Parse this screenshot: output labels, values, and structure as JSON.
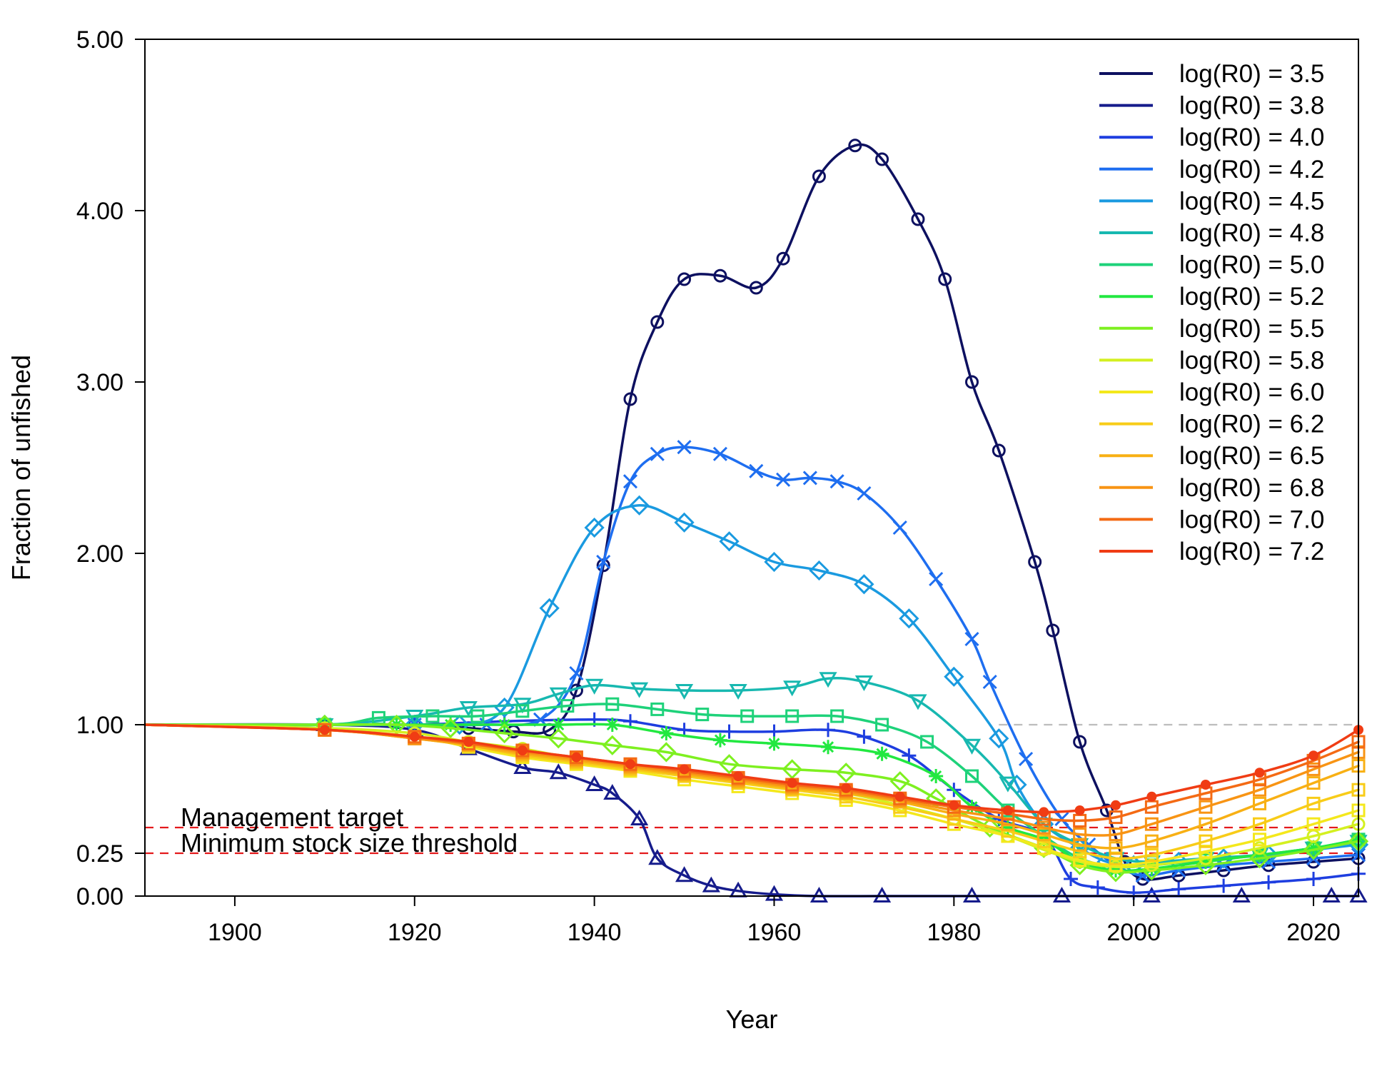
{
  "chart_data": {
    "type": "line",
    "xlabel": "Year",
    "ylabel": "Fraction of unfished",
    "xlim": [
      1890,
      2025
    ],
    "ylim": [
      0,
      5
    ],
    "xticks": [
      "1900",
      "1920",
      "1940",
      "1960",
      "1980",
      "2000",
      "2020"
    ],
    "xtick_values": [
      1900,
      1920,
      1940,
      1960,
      1980,
      2000,
      2020
    ],
    "yticks": [
      "0.00",
      "0.25",
      "1.00",
      "2.00",
      "3.00",
      "4.00",
      "5.00"
    ],
    "ytick_values": [
      0,
      0.25,
      1,
      2,
      3,
      4,
      5
    ],
    "grid": false,
    "legend_position": "top-right",
    "reference_lines": [
      {
        "label": "",
        "y": 1.0,
        "color": "#bdbdbd",
        "style": "dashed"
      },
      {
        "label": "Management target",
        "y": 0.4,
        "color": "#e41a1c",
        "style": "dashed"
      },
      {
        "label": "Minimum stock size threshold",
        "y": 0.25,
        "color": "#e41a1c",
        "style": "dashed"
      }
    ],
    "series": [
      {
        "name": "log(R0) = 3.5",
        "color": "#0d1060",
        "marker": "circle",
        "x": [
          1890,
          1910,
          1920,
          1926,
          1931,
          1935,
          1938,
          1941,
          1944,
          1947,
          1950,
          1954,
          1958,
          1961,
          1965,
          1969,
          1972,
          1976,
          1979,
          1982,
          1985,
          1989,
          1991,
          1994,
          1997,
          1999,
          2001,
          2005,
          2010,
          2015,
          2020,
          2025
        ],
        "y": [
          1.0,
          1.0,
          1.0,
          0.98,
          0.96,
          0.97,
          1.2,
          1.93,
          2.9,
          3.35,
          3.6,
          3.62,
          3.55,
          3.72,
          4.2,
          4.38,
          4.3,
          3.95,
          3.6,
          3.0,
          2.6,
          1.95,
          1.55,
          0.9,
          0.5,
          0.2,
          0.1,
          0.12,
          0.15,
          0.18,
          0.2,
          0.22
        ]
      },
      {
        "name": "log(R0) = 3.8",
        "color": "#161c8c",
        "marker": "triangle",
        "x": [
          1890,
          1910,
          1920,
          1926,
          1932,
          1936,
          1940,
          1942,
          1945,
          1947,
          1950,
          1953,
          1956,
          1960,
          1965,
          1972,
          1982,
          1992,
          2002,
          2012,
          2022,
          2025
        ],
        "y": [
          1.0,
          1.0,
          0.97,
          0.86,
          0.75,
          0.72,
          0.65,
          0.6,
          0.45,
          0.22,
          0.12,
          0.06,
          0.03,
          0.01,
          0.0,
          0.0,
          0.0,
          0.0,
          0.0,
          0.0,
          0.0,
          0.0
        ]
      },
      {
        "name": "log(R0) = 4.0",
        "color": "#1e3ee0",
        "marker": "plus",
        "x": [
          1890,
          1910,
          1920,
          1930,
          1940,
          1944,
          1950,
          1955,
          1960,
          1966,
          1970,
          1975,
          1980,
          1985,
          1990,
          1993,
          1996,
          2000,
          2005,
          2010,
          2015,
          2020,
          2025
        ],
        "y": [
          1.0,
          1.0,
          1.0,
          1.02,
          1.03,
          1.02,
          0.97,
          0.96,
          0.96,
          0.97,
          0.93,
          0.82,
          0.62,
          0.45,
          0.35,
          0.1,
          0.05,
          0.02,
          0.04,
          0.06,
          0.08,
          0.1,
          0.13
        ]
      },
      {
        "name": "log(R0) = 4.2",
        "color": "#1e6ef0",
        "marker": "x",
        "x": [
          1890,
          1910,
          1920,
          1928,
          1934,
          1938,
          1941,
          1944,
          1947,
          1950,
          1954,
          1958,
          1961,
          1964,
          1967,
          1970,
          1974,
          1978,
          1982,
          1984,
          1988,
          1992,
          1995,
          1998,
          2001,
          2005,
          2010,
          2015,
          2020,
          2025
        ],
        "y": [
          1.0,
          1.0,
          1.0,
          1.0,
          1.03,
          1.3,
          1.95,
          2.42,
          2.58,
          2.62,
          2.58,
          2.48,
          2.43,
          2.44,
          2.42,
          2.35,
          2.15,
          1.85,
          1.5,
          1.25,
          0.8,
          0.45,
          0.3,
          0.18,
          0.12,
          0.15,
          0.18,
          0.2,
          0.22,
          0.24
        ]
      },
      {
        "name": "log(R0) = 4.5",
        "color": "#1a9ae0",
        "marker": "diamond",
        "x": [
          1890,
          1910,
          1920,
          1925,
          1930,
          1935,
          1940,
          1945,
          1950,
          1955,
          1960,
          1965,
          1970,
          1975,
          1980,
          1985,
          1987,
          1990,
          1994,
          1997,
          2000,
          2005,
          2010,
          2015,
          2020,
          2025
        ],
        "y": [
          1.0,
          1.0,
          1.0,
          1.0,
          1.1,
          1.68,
          2.15,
          2.28,
          2.18,
          2.07,
          1.95,
          1.9,
          1.82,
          1.62,
          1.28,
          0.92,
          0.65,
          0.42,
          0.28,
          0.2,
          0.18,
          0.2,
          0.22,
          0.24,
          0.27,
          0.3
        ]
      },
      {
        "name": "log(R0) = 4.8",
        "color": "#17b8b0",
        "marker": "triangle-down",
        "x": [
          1890,
          1910,
          1920,
          1926,
          1932,
          1936,
          1940,
          1945,
          1950,
          1956,
          1962,
          1966,
          1970,
          1976,
          1982,
          1986,
          1990,
          1994,
          1998,
          2002,
          2008,
          2014,
          2020,
          2025
        ],
        "y": [
          1.0,
          1.0,
          1.05,
          1.1,
          1.12,
          1.18,
          1.23,
          1.21,
          1.2,
          1.2,
          1.22,
          1.27,
          1.25,
          1.14,
          0.88,
          0.66,
          0.42,
          0.3,
          0.22,
          0.2,
          0.22,
          0.24,
          0.28,
          0.32
        ]
      },
      {
        "name": "log(R0) = 5.0",
        "color": "#1ed27a",
        "marker": "square",
        "x": [
          1890,
          1910,
          1916,
          1922,
          1927,
          1932,
          1937,
          1942,
          1947,
          1952,
          1957,
          1962,
          1967,
          1972,
          1977,
          1982,
          1986,
          1990,
          1994,
          1998,
          2002,
          2008,
          2014,
          2020,
          2025
        ],
        "y": [
          1.0,
          1.0,
          1.04,
          1.05,
          1.05,
          1.08,
          1.11,
          1.12,
          1.09,
          1.06,
          1.05,
          1.05,
          1.05,
          1.0,
          0.9,
          0.7,
          0.5,
          0.35,
          0.22,
          0.17,
          0.18,
          0.21,
          0.24,
          0.28,
          0.33
        ]
      },
      {
        "name": "log(R0) = 5.2",
        "color": "#22e840",
        "marker": "asterisk",
        "x": [
          1890,
          1910,
          1918,
          1924,
          1930,
          1936,
          1942,
          1948,
          1954,
          1960,
          1966,
          1972,
          1978,
          1982,
          1986,
          1990,
          1994,
          1998,
          2002,
          2008,
          2014,
          2020,
          2025
        ],
        "y": [
          1.0,
          1.0,
          1.0,
          1.0,
          1.0,
          1.0,
          1.0,
          0.95,
          0.91,
          0.89,
          0.87,
          0.83,
          0.7,
          0.52,
          0.4,
          0.33,
          0.2,
          0.15,
          0.16,
          0.2,
          0.24,
          0.28,
          0.33
        ]
      },
      {
        "name": "log(R0) = 5.5",
        "color": "#7ef020",
        "marker": "diamond",
        "x": [
          1890,
          1910,
          1918,
          1924,
          1930,
          1936,
          1942,
          1948,
          1955,
          1962,
          1968,
          1974,
          1978,
          1984,
          1990,
          1994,
          1998,
          2002,
          2008,
          2014,
          2020,
          2025
        ],
        "y": [
          1.0,
          1.0,
          1.0,
          0.98,
          0.95,
          0.92,
          0.88,
          0.84,
          0.77,
          0.74,
          0.72,
          0.67,
          0.57,
          0.4,
          0.28,
          0.18,
          0.14,
          0.15,
          0.18,
          0.22,
          0.27,
          0.32
        ]
      },
      {
        "name": "log(R0) = 5.8",
        "color": "#d4f020",
        "marker": "circle",
        "x": [
          1890,
          1910,
          1920,
          1926,
          1932,
          1938,
          1944,
          1950,
          1956,
          1962,
          1968,
          1974,
          1980,
          1986,
          1990,
          1994,
          1998,
          2002,
          2008,
          2014,
          2020,
          2025
        ],
        "y": [
          1.0,
          0.98,
          0.95,
          0.9,
          0.86,
          0.8,
          0.75,
          0.71,
          0.67,
          0.63,
          0.6,
          0.53,
          0.45,
          0.35,
          0.27,
          0.2,
          0.17,
          0.18,
          0.22,
          0.28,
          0.35,
          0.42
        ]
      },
      {
        "name": "log(R0) = 6.0",
        "color": "#f4e81c",
        "marker": "square",
        "x": [
          1890,
          1910,
          1920,
          1926,
          1932,
          1938,
          1944,
          1950,
          1956,
          1962,
          1968,
          1974,
          1980,
          1986,
          1990,
          1994,
          1998,
          2002,
          2008,
          2014,
          2020,
          2025
        ],
        "y": [
          1.0,
          0.97,
          0.93,
          0.87,
          0.81,
          0.77,
          0.73,
          0.68,
          0.64,
          0.6,
          0.56,
          0.5,
          0.42,
          0.35,
          0.28,
          0.21,
          0.18,
          0.2,
          0.26,
          0.33,
          0.42,
          0.5
        ]
      },
      {
        "name": "log(R0) = 6.2",
        "color": "#f8cc18",
        "marker": "square",
        "x": [
          1890,
          1910,
          1920,
          1926,
          1932,
          1938,
          1944,
          1950,
          1956,
          1962,
          1968,
          1974,
          1980,
          1986,
          1990,
          1994,
          1998,
          2002,
          2008,
          2014,
          2020,
          2025
        ],
        "y": [
          1.0,
          0.97,
          0.92,
          0.88,
          0.82,
          0.78,
          0.74,
          0.7,
          0.66,
          0.62,
          0.58,
          0.52,
          0.45,
          0.38,
          0.32,
          0.26,
          0.22,
          0.24,
          0.32,
          0.42,
          0.54,
          0.62
        ]
      },
      {
        "name": "log(R0) = 6.5",
        "color": "#f8b014",
        "marker": "square",
        "x": [
          1890,
          1910,
          1920,
          1926,
          1932,
          1938,
          1944,
          1950,
          1956,
          1962,
          1968,
          1974,
          1980,
          1986,
          1990,
          1994,
          1998,
          2002,
          2008,
          2014,
          2020,
          2025
        ],
        "y": [
          1.0,
          0.97,
          0.92,
          0.88,
          0.83,
          0.79,
          0.75,
          0.71,
          0.67,
          0.63,
          0.6,
          0.55,
          0.48,
          0.42,
          0.36,
          0.3,
          0.28,
          0.32,
          0.42,
          0.54,
          0.66,
          0.76
        ]
      },
      {
        "name": "log(R0) = 6.8",
        "color": "#f89414",
        "marker": "square",
        "x": [
          1890,
          1910,
          1920,
          1926,
          1932,
          1938,
          1944,
          1950,
          1956,
          1962,
          1968,
          1974,
          1980,
          1986,
          1990,
          1994,
          1998,
          2002,
          2008,
          2014,
          2020,
          2025
        ],
        "y": [
          1.0,
          0.97,
          0.92,
          0.89,
          0.84,
          0.8,
          0.76,
          0.72,
          0.68,
          0.64,
          0.61,
          0.56,
          0.5,
          0.45,
          0.4,
          0.36,
          0.36,
          0.42,
          0.52,
          0.62,
          0.74,
          0.84
        ]
      },
      {
        "name": "log(R0) = 7.0",
        "color": "#f46a14",
        "marker": "square",
        "x": [
          1890,
          1910,
          1920,
          1926,
          1932,
          1938,
          1944,
          1950,
          1956,
          1962,
          1968,
          1974,
          1980,
          1986,
          1990,
          1994,
          1998,
          2002,
          2008,
          2014,
          2020,
          2025
        ],
        "y": [
          1.0,
          0.97,
          0.93,
          0.89,
          0.85,
          0.81,
          0.77,
          0.73,
          0.69,
          0.65,
          0.62,
          0.57,
          0.52,
          0.48,
          0.45,
          0.44,
          0.46,
          0.52,
          0.6,
          0.68,
          0.79,
          0.9
        ]
      },
      {
        "name": "log(R0) = 7.2",
        "color": "#f03c14",
        "marker": "dot",
        "x": [
          1890,
          1910,
          1920,
          1926,
          1932,
          1938,
          1944,
          1950,
          1956,
          1962,
          1968,
          1974,
          1980,
          1986,
          1990,
          1994,
          1998,
          2002,
          2008,
          2014,
          2020,
          2025
        ],
        "y": [
          1.0,
          0.97,
          0.93,
          0.9,
          0.85,
          0.81,
          0.77,
          0.74,
          0.7,
          0.66,
          0.63,
          0.58,
          0.53,
          0.5,
          0.49,
          0.5,
          0.53,
          0.58,
          0.65,
          0.72,
          0.82,
          0.97
        ]
      }
    ]
  }
}
